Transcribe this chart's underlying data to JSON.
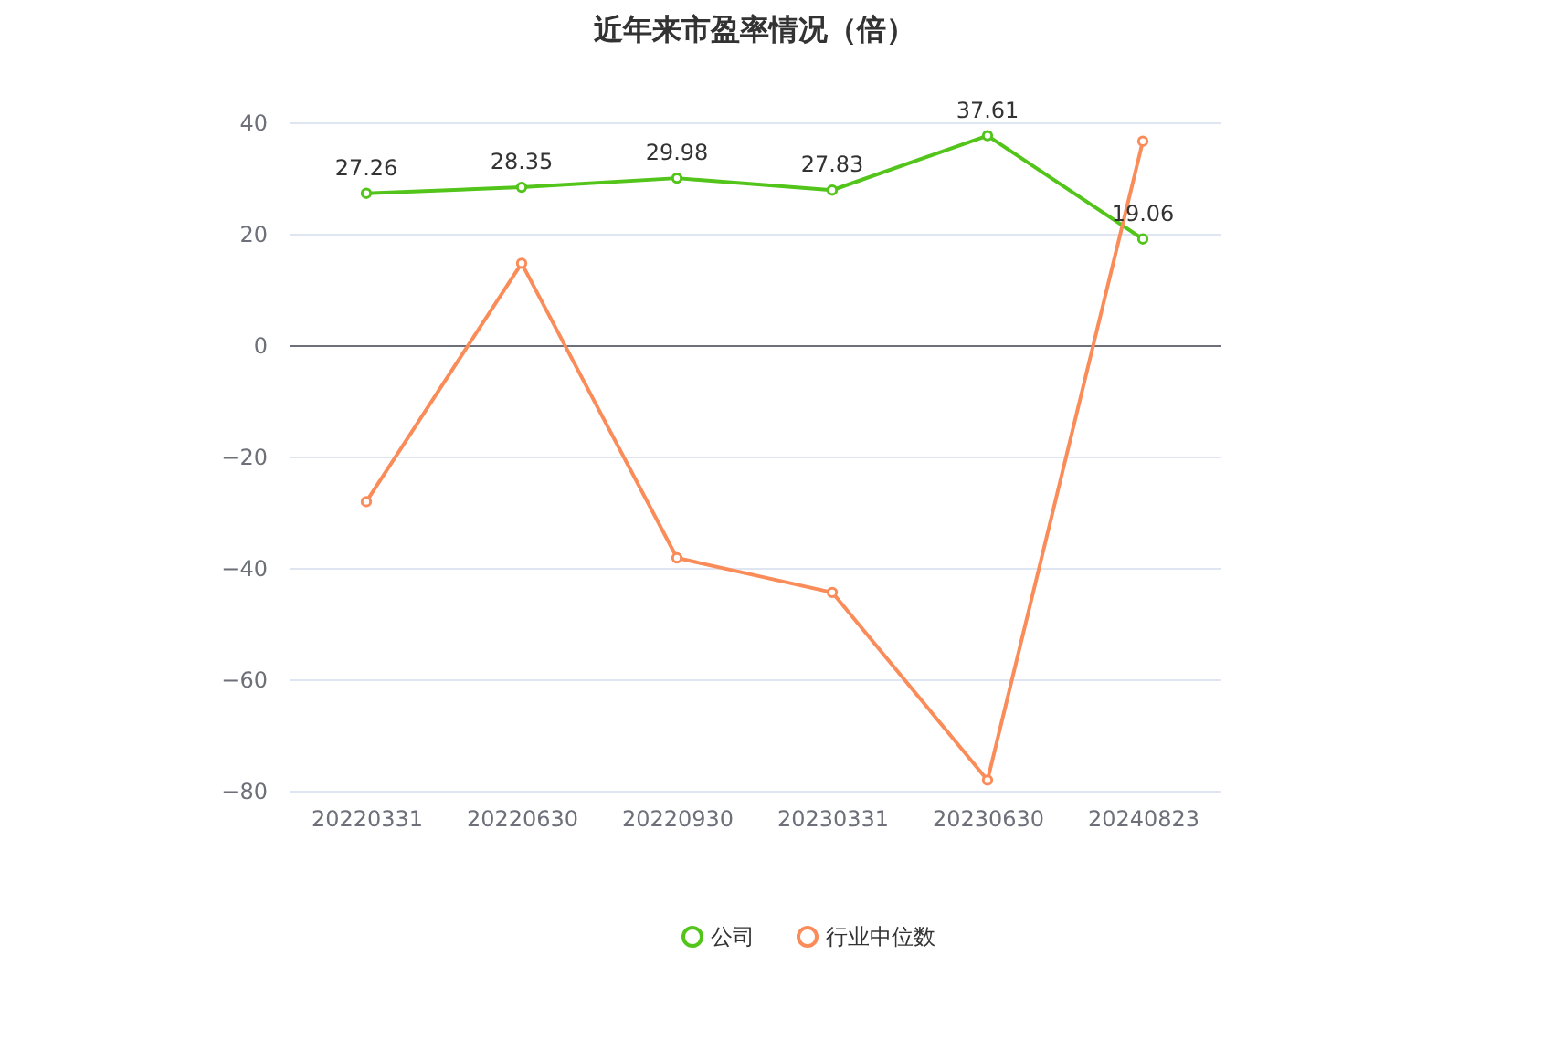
{
  "chart_data": {
    "type": "line",
    "title": "近年来市盈率情况（倍）",
    "categories": [
      "20220331",
      "20220630",
      "20220930",
      "20230331",
      "20230630",
      "20240823"
    ],
    "series": [
      {
        "name": "公司",
        "color": "#52c41a",
        "values": [
          27.26,
          28.35,
          29.98,
          27.83,
          37.61,
          19.06
        ],
        "value_labels": [
          "27.26",
          "28.35",
          "29.98",
          "27.83",
          "37.61",
          "19.06"
        ]
      },
      {
        "name": "行业中位数",
        "color": "#fa8c5a",
        "values": [
          -28.1,
          14.7,
          -38.2,
          -44.4,
          -78.1,
          36.6
        ]
      }
    ],
    "ylim": [
      -80,
      40
    ],
    "yticks": [
      -80,
      -60,
      -40,
      -20,
      0,
      20,
      40
    ],
    "grid": "y",
    "legend": "bottom",
    "marker": "circle",
    "line_style": "solid"
  }
}
